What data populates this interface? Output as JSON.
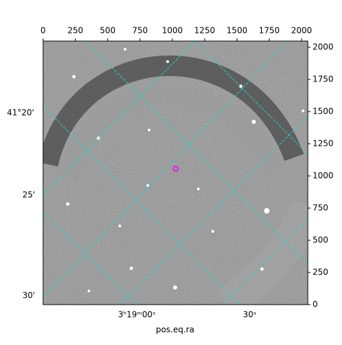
{
  "chart_data": {
    "type": "image",
    "xlabel": "pos.eq.ra",
    "xlim": [
      0,
      2048
    ],
    "ylim": [
      0,
      2048
    ],
    "xticks": [
      0,
      250,
      500,
      750,
      1000,
      1250,
      1500,
      1750,
      2000
    ],
    "yticks": [
      0,
      250,
      500,
      750,
      1000,
      1250,
      1500,
      1750,
      2000
    ],
    "world_y_labels": [
      "41°20'",
      "25'",
      "30'"
    ],
    "world_x_labels": [
      "3ʰ19ᵐ00ˢ",
      "30ˢ"
    ],
    "marker": {
      "x": 1026,
      "y": 1056,
      "color": "#e020e0"
    }
  }
}
